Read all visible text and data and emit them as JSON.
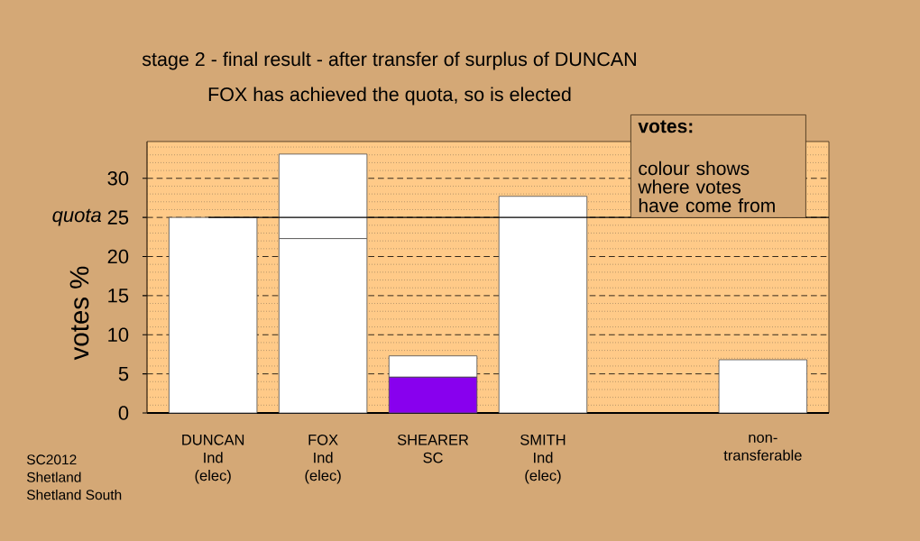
{
  "chart_data": {
    "type": "bar",
    "stacked": true,
    "title": "stage 2 - final result - after transfer of surplus of DUNCAN",
    "subtitle": "FOX has achieved the quota, so is elected",
    "ylabel": "votes %",
    "categories": [
      "DUNCAN Ind (elec)",
      "FOX Ind (elec)",
      "SHEARER SC",
      "SMITH Ind (elec)",
      null,
      "non-transferable"
    ],
    "series": [
      {
        "colors": [
          "#ffffff",
          "#ffffff",
          "#8800ee",
          "#ffffff",
          null,
          "#ffffff"
        ],
        "values": [
          25,
          22.3,
          4.6,
          27.7,
          null,
          6.8
        ]
      },
      {
        "color": "#ffffff",
        "values": [
          null,
          10.8,
          2.7,
          null,
          null,
          null
        ]
      }
    ],
    "ylim": [
      0,
      34.7
    ],
    "yticks": [
      0,
      {
        "value": 1,
        "label": null
      },
      {
        "value": 2,
        "label": null
      },
      {
        "value": 3,
        "label": null
      },
      {
        "value": 4,
        "label": null
      },
      5,
      {
        "value": 6,
        "label": null
      },
      {
        "value": 7,
        "label": null
      },
      {
        "value": 8,
        "label": null
      },
      {
        "value": 9,
        "label": null
      },
      10,
      {
        "value": 11,
        "label": null
      },
      {
        "value": 12,
        "label": null
      },
      {
        "value": 13,
        "label": null
      },
      {
        "value": 14,
        "label": null
      },
      15,
      {
        "value": 16,
        "label": null
      },
      {
        "value": 17,
        "label": null
      },
      {
        "value": 18,
        "label": null
      },
      {
        "value": 19,
        "label": null
      },
      20,
      {
        "value": 21,
        "label": null
      },
      {
        "value": 22,
        "label": null
      },
      {
        "value": 23,
        "label": null
      },
      {
        "value": 24,
        "label": null
      },
      25,
      {
        "value": 26,
        "label": null
      },
      {
        "value": 27,
        "label": null
      },
      {
        "value": 28,
        "label": null
      },
      {
        "value": 29,
        "label": null
      },
      30,
      {
        "value": 31,
        "label": null
      },
      {
        "value": 32,
        "label": null
      },
      {
        "value": 33,
        "label": null
      },
      {
        "value": 34,
        "label": null
      }
    ],
    "grid": "y",
    "ref_lines": [
      {
        "axis": "y",
        "value": 25,
        "label": "quota"
      }
    ],
    "annotations": [
      "votes:",
      "colour shows where votes have come from",
      "SC2012",
      "Shetland",
      "Shetland South"
    ]
  }
}
